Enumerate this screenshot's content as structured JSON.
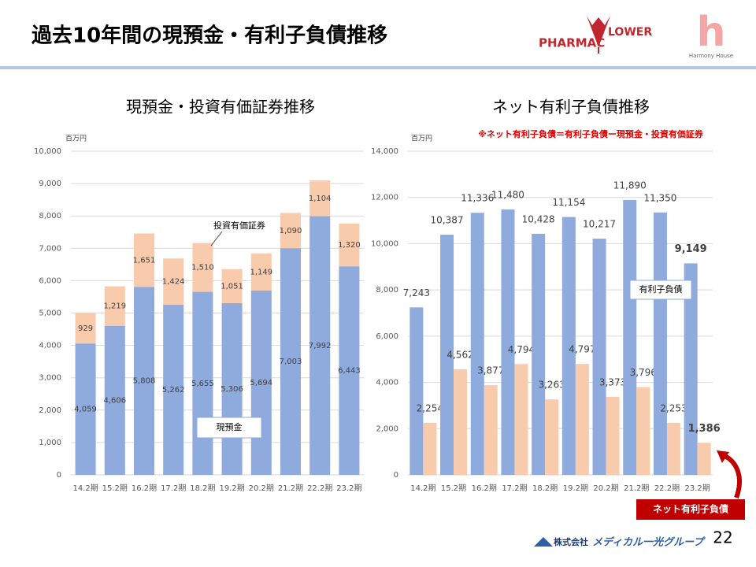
{
  "header": {
    "title": "過去10年間の現預金・有利子負債推移",
    "logo_left": "PHARMAC",
    "logo_right": "LOWER",
    "logo2_letter": "h",
    "logo2_name": "Harmony House"
  },
  "chart_data": [
    {
      "type": "stacked-bar",
      "title": "現預金・投資有価証券推移",
      "y_label": "百万円",
      "categories": [
        "14.2期",
        "15.2期",
        "16.2期",
        "17.2期",
        "18.2期",
        "19.2期",
        "20.2期",
        "21.2期",
        "22.2期",
        "23.2期"
      ],
      "series": [
        {
          "name": "現預金",
          "color": "#8faadc",
          "values": [
            4059,
            4606,
            5808,
            5262,
            5655,
            5306,
            5694,
            7003,
            7992,
            6443
          ],
          "value_labels": [
            "4,059",
            "4,606",
            "5,808",
            "5,262",
            "5,655",
            "5,306",
            "5,694",
            "7,003",
            "7,992",
            "6,443"
          ]
        },
        {
          "name": "投資有価証券",
          "color": "#f8cbad",
          "values": [
            929,
            1219,
            1651,
            1424,
            1510,
            1051,
            1149,
            1090,
            1104,
            1320
          ],
          "value_labels": [
            "929",
            "1,219",
            "1,651",
            "1,424",
            "1,510",
            "1,051",
            "1,149",
            "1,090",
            "1,104",
            "1,320"
          ]
        }
      ],
      "ylim": [
        0,
        10000
      ],
      "yticks": [
        0,
        {
          "value": 1000,
          "label": "1,000"
        },
        {
          "value": 2000,
          "label": "2,000"
        },
        {
          "value": 3000,
          "label": "3,000"
        },
        {
          "value": 4000,
          "label": "4,000"
        },
        {
          "value": 5000,
          "label": "5,000"
        },
        {
          "value": 6000,
          "label": "6,000"
        },
        {
          "value": 7000,
          "label": "7,000"
        },
        {
          "value": 8000,
          "label": "8,000"
        },
        {
          "value": 9000,
          "label": "9,000"
        },
        {
          "value": 10000,
          "label": "10,000"
        }
      ],
      "grid": true
    },
    {
      "type": "bar",
      "title": "ネット有利子負債推移",
      "y_label": "百万円",
      "note": "※ネット有利子負債＝有利子負債ー現預金・投資有価証券",
      "categories": [
        "14.2期",
        "15.2期",
        "16.2期",
        "17.2期",
        "18.2期",
        "19.2期",
        "20.2期",
        "21.2期",
        "22.2期",
        "23.2期"
      ],
      "series": [
        {
          "name": "有利子負債",
          "color": "#8faadc",
          "values": [
            7243,
            10387,
            11336,
            11480,
            10428,
            11154,
            10217,
            11890,
            11350,
            9149
          ],
          "value_labels": [
            "7,243",
            "10,387",
            "11,336",
            "11,480",
            "10,428",
            "11,154",
            "10,217",
            "11,890",
            "11,350",
            "9,149"
          ]
        },
        {
          "name": "ネット有利子負債",
          "color": "#f8cbad",
          "values": [
            2254,
            4562,
            3877,
            4794,
            3263,
            4797,
            3373,
            3796,
            2253,
            1386
          ],
          "value_labels": [
            "2,254",
            "4,562",
            "3,877",
            "4,794",
            "3,263",
            "4,797",
            "3,373",
            "3,796",
            "2,253",
            "1,386"
          ]
        }
      ],
      "ylim": [
        0,
        14000
      ],
      "yticks": [
        0,
        {
          "value": 2000,
          "label": "2,000"
        },
        {
          "value": 4000,
          "label": "4,000"
        },
        {
          "value": 6000,
          "label": "6,000"
        },
        {
          "value": 8000,
          "label": "8,000"
        },
        {
          "value": 10000,
          "label": "10,000"
        },
        {
          "value": 12000,
          "label": "12,000"
        },
        {
          "value": 14000,
          "label": "14,000"
        }
      ],
      "grid": true
    }
  ],
  "footer": {
    "company_prefix": "株式会社",
    "company_name": "メディカル一光グループ",
    "page": "22"
  }
}
